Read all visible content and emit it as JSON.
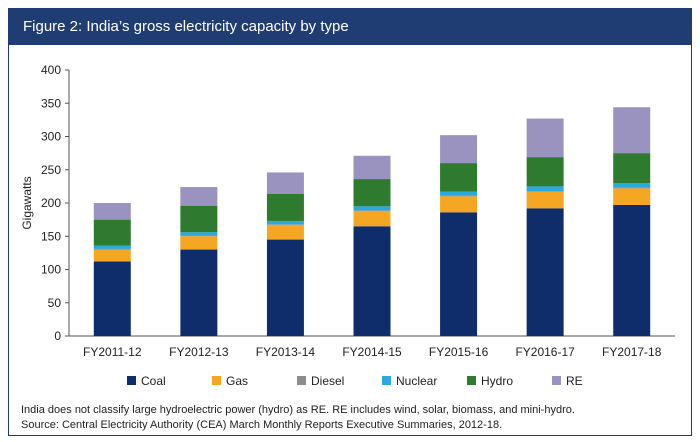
{
  "figure": {
    "title": "Figure 2: India’s gross electricity capacity by type",
    "note": "India does not classify large hydroelectric power (hydro) as RE. RE includes wind, solar, biomass, and mini-hydro.",
    "source": "Source: Central Electricity Authority (CEA) March Monthly Reports Executive Summaries, 2012-18."
  },
  "chart_data": {
    "type": "bar",
    "stacked": true,
    "ylabel": "Gigawatts",
    "ylim": [
      0,
      400
    ],
    "yticks": [
      0,
      50,
      100,
      150,
      200,
      250,
      300,
      350,
      400
    ],
    "grid": false,
    "legend": "bottom",
    "categories": [
      "FY2011-12",
      "FY2012-13",
      "FY2013-14",
      "FY2014-15",
      "FY2015-16",
      "FY2016-17",
      "FY2017-18"
    ],
    "series": [
      {
        "name": "Coal",
        "color": "#0f2d6b",
        "values": [
          112,
          130,
          145,
          165,
          186,
          192,
          197
        ]
      },
      {
        "name": "Gas",
        "color": "#f5a623",
        "values": [
          18,
          20,
          22,
          23,
          24,
          25,
          25
        ]
      },
      {
        "name": "Diesel",
        "color": "#8c8c8c",
        "values": [
          1,
          1,
          1,
          1,
          1,
          1,
          1
        ]
      },
      {
        "name": "Nuclear",
        "color": "#29a9de",
        "values": [
          5,
          5,
          5,
          6,
          6,
          7,
          7
        ]
      },
      {
        "name": "Hydro",
        "color": "#2e7a2e",
        "values": [
          39,
          40,
          41,
          41,
          43,
          44,
          45
        ]
      },
      {
        "name": "RE",
        "color": "#9a92bf",
        "values": [
          25,
          28,
          32,
          35,
          42,
          58,
          69
        ]
      }
    ]
  }
}
